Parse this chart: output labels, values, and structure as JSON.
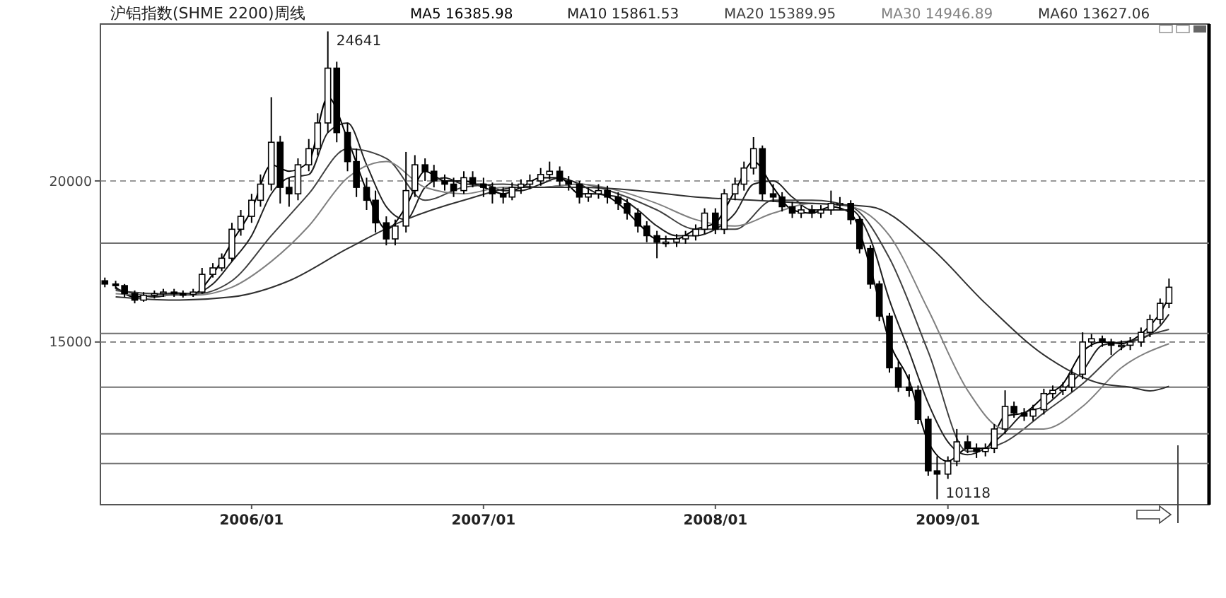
{
  "chart_data": {
    "type": "candlestick",
    "title": "沪铝指数(SHME 2200)周线",
    "x": [
      "2005-05-15",
      "2005-06-01",
      "2005-06-15",
      "2005-07-01",
      "2005-07-15",
      "2005-08-01",
      "2005-08-15",
      "2005-09-01",
      "2005-09-15",
      "2005-10-01",
      "2005-10-15",
      "2005-11-01",
      "2005-11-15",
      "2005-12-01",
      "2005-12-15",
      "2006-01-01",
      "2006-01-15",
      "2006-02-01",
      "2006-02-15",
      "2006-03-01",
      "2006-03-15",
      "2006-04-01",
      "2006-04-15",
      "2006-05-01",
      "2006-05-15",
      "2006-06-01",
      "2006-06-15",
      "2006-07-01",
      "2006-07-15",
      "2006-08-01",
      "2006-08-15",
      "2006-09-01",
      "2006-09-15",
      "2006-10-01",
      "2006-10-15",
      "2006-11-01",
      "2006-11-15",
      "2006-12-01",
      "2006-12-15",
      "2007-01-01",
      "2007-01-15",
      "2007-02-01",
      "2007-02-15",
      "2007-03-01",
      "2007-03-15",
      "2007-04-01",
      "2007-04-15",
      "2007-05-01",
      "2007-05-15",
      "2007-06-01",
      "2007-06-15",
      "2007-07-01",
      "2007-07-15",
      "2007-08-01",
      "2007-08-15",
      "2007-09-01",
      "2007-09-15",
      "2007-10-01",
      "2007-10-15",
      "2007-11-01",
      "2007-11-15",
      "2007-12-01",
      "2007-12-15",
      "2008-01-01",
      "2008-01-15",
      "2008-02-01",
      "2008-02-15",
      "2008-03-01",
      "2008-03-15",
      "2008-04-01",
      "2008-04-15",
      "2008-05-01",
      "2008-05-15",
      "2008-06-01",
      "2008-06-15",
      "2008-07-01",
      "2008-07-15",
      "2008-08-01",
      "2008-08-15",
      "2008-09-01",
      "2008-09-15",
      "2008-10-01",
      "2008-10-15",
      "2008-11-01",
      "2008-11-15",
      "2008-12-01",
      "2008-12-15",
      "2009-01-01",
      "2009-01-15",
      "2009-02-01",
      "2009-02-15",
      "2009-03-01",
      "2009-03-15",
      "2009-04-01",
      "2009-04-15",
      "2009-05-01",
      "2009-05-15",
      "2009-06-01",
      "2009-06-15",
      "2009-07-01",
      "2009-07-15",
      "2009-08-01",
      "2009-08-15",
      "2009-09-01",
      "2009-09-15",
      "2009-10-01",
      "2009-10-15",
      "2009-11-01",
      "2009-11-15",
      "2009-12-01",
      "2009-12-15"
    ],
    "ohlc": [
      [
        16900,
        17000,
        16700,
        16800
      ],
      [
        16800,
        16900,
        16650,
        16750
      ],
      [
        16750,
        16800,
        16400,
        16500
      ],
      [
        16500,
        16600,
        16200,
        16300
      ],
      [
        16300,
        16550,
        16250,
        16450
      ],
      [
        16450,
        16600,
        16350,
        16500
      ],
      [
        16500,
        16650,
        16400,
        16550
      ],
      [
        16550,
        16650,
        16400,
        16500
      ],
      [
        16500,
        16600,
        16380,
        16480
      ],
      [
        16480,
        16650,
        16400,
        16550
      ],
      [
        16550,
        17300,
        16500,
        17100
      ],
      [
        17100,
        17450,
        17000,
        17300
      ],
      [
        17300,
        17750,
        17200,
        17600
      ],
      [
        17600,
        18700,
        17500,
        18500
      ],
      [
        18500,
        19100,
        18300,
        18900
      ],
      [
        18900,
        19600,
        18700,
        19400
      ],
      [
        19400,
        20200,
        19200,
        19900
      ],
      [
        19900,
        22600,
        19700,
        21200
      ],
      [
        21200,
        21400,
        19300,
        19800
      ],
      [
        19800,
        20100,
        19200,
        19600
      ],
      [
        19600,
        20700,
        19400,
        20500
      ],
      [
        20500,
        21300,
        20300,
        21000
      ],
      [
        21000,
        22100,
        20800,
        21800
      ],
      [
        21800,
        24641,
        21500,
        23500
      ],
      [
        23500,
        23700,
        21200,
        21500
      ],
      [
        21500,
        21800,
        20300,
        20600
      ],
      [
        20600,
        21000,
        19500,
        19800
      ],
      [
        19800,
        20100,
        19100,
        19400
      ],
      [
        19400,
        19700,
        18400,
        18700
      ],
      [
        18700,
        18900,
        18000,
        18200
      ],
      [
        18200,
        18800,
        18000,
        18600
      ],
      [
        18600,
        20900,
        18400,
        19700
      ],
      [
        19700,
        20800,
        19500,
        20500
      ],
      [
        20500,
        20700,
        20000,
        20300
      ],
      [
        20300,
        20500,
        19800,
        20000
      ],
      [
        20000,
        20200,
        19700,
        19900
      ],
      [
        19900,
        20100,
        19500,
        19700
      ],
      [
        19700,
        20300,
        19600,
        20100
      ],
      [
        20100,
        20300,
        19800,
        19900
      ],
      [
        19900,
        20100,
        19500,
        19800
      ],
      [
        19800,
        19950,
        19300,
        19600
      ],
      [
        19600,
        19800,
        19300,
        19500
      ],
      [
        19500,
        19950,
        19400,
        19800
      ],
      [
        19800,
        20050,
        19600,
        19900
      ],
      [
        19900,
        20200,
        19750,
        20000
      ],
      [
        20000,
        20400,
        19850,
        20200
      ],
      [
        20200,
        20600,
        20050,
        20300
      ],
      [
        20300,
        20450,
        19850,
        20000
      ],
      [
        20000,
        20150,
        19700,
        19900
      ],
      [
        19900,
        20000,
        19300,
        19500
      ],
      [
        19500,
        19800,
        19350,
        19600
      ],
      [
        19600,
        19900,
        19450,
        19700
      ],
      [
        19700,
        19850,
        19300,
        19500
      ],
      [
        19500,
        19650,
        19100,
        19300
      ],
      [
        19300,
        19450,
        18800,
        19000
      ],
      [
        19000,
        19150,
        18400,
        18600
      ],
      [
        18600,
        18750,
        18100,
        18300
      ],
      [
        18300,
        18450,
        17600,
        18100
      ],
      [
        18100,
        18300,
        17950,
        18100
      ],
      [
        18100,
        18350,
        17950,
        18200
      ],
      [
        18200,
        18450,
        18050,
        18300
      ],
      [
        18300,
        18650,
        18150,
        18500
      ],
      [
        18500,
        19150,
        18350,
        19000
      ],
      [
        19000,
        19150,
        18350,
        18500
      ],
      [
        18500,
        19750,
        18350,
        19600
      ],
      [
        19600,
        20100,
        19400,
        19900
      ],
      [
        19900,
        20600,
        19700,
        20400
      ],
      [
        20400,
        21360,
        20200,
        21000
      ],
      [
        21000,
        21100,
        19400,
        19600
      ],
      [
        19600,
        19900,
        19350,
        19500
      ],
      [
        19500,
        19650,
        19050,
        19200
      ],
      [
        19200,
        19350,
        18850,
        19000
      ],
      [
        19000,
        19250,
        18850,
        19100
      ],
      [
        19100,
        19250,
        18850,
        19000
      ],
      [
        19000,
        19250,
        18850,
        19100
      ],
      [
        19100,
        19700,
        18950,
        19300
      ],
      [
        19300,
        19500,
        19100,
        19300
      ],
      [
        19300,
        19400,
        18650,
        18800
      ],
      [
        18800,
        18900,
        17750,
        17900
      ],
      [
        17900,
        18000,
        16650,
        16800
      ],
      [
        16800,
        16900,
        15650,
        15800
      ],
      [
        15800,
        15900,
        14050,
        14200
      ],
      [
        14200,
        14400,
        13450,
        13600
      ],
      [
        13600,
        14000,
        13300,
        13500
      ],
      [
        13500,
        13650,
        12450,
        12600
      ],
      [
        12600,
        12700,
        10850,
        11000
      ],
      [
        11000,
        11450,
        10118,
        10900
      ],
      [
        10900,
        11450,
        10750,
        11300
      ],
      [
        11300,
        12300,
        11150,
        11900
      ],
      [
        11900,
        12100,
        11550,
        11700
      ],
      [
        11700,
        11850,
        11400,
        11600
      ],
      [
        11600,
        11850,
        11450,
        11700
      ],
      [
        11700,
        12450,
        11550,
        12300
      ],
      [
        12300,
        13500,
        12150,
        13000
      ],
      [
        13000,
        13150,
        12650,
        12800
      ],
      [
        12800,
        12950,
        12550,
        12700
      ],
      [
        12700,
        13050,
        12550,
        12900
      ],
      [
        12900,
        13550,
        12750,
        13400
      ],
      [
        13400,
        13650,
        13250,
        13500
      ],
      [
        13500,
        13750,
        13350,
        13600
      ],
      [
        13600,
        14150,
        13450,
        14000
      ],
      [
        14000,
        15300,
        13850,
        15000
      ],
      [
        15000,
        15250,
        14850,
        15100
      ],
      [
        15100,
        15200,
        14850,
        15000
      ],
      [
        15000,
        15100,
        14600,
        14900
      ],
      [
        14900,
        15050,
        14750,
        14900
      ],
      [
        14900,
        15150,
        14750,
        15000
      ],
      [
        15000,
        15450,
        14850,
        15300
      ],
      [
        15300,
        15850,
        15150,
        15700
      ],
      [
        15700,
        16350,
        15550,
        16200
      ],
      [
        16200,
        16970,
        16050,
        16700
      ]
    ],
    "series": [
      {
        "type": "line",
        "name": "MA5 16385.98",
        "color": "#000000",
        "x": [
          "2005-06-01",
          "2005-07-01",
          "2005-08-01",
          "2005-09-01",
          "2005-10-01",
          "2005-11-01",
          "2005-12-01",
          "2006-01-01",
          "2006-02-01",
          "2006-03-01",
          "2006-04-01",
          "2006-05-01",
          "2006-06-01",
          "2006-07-01",
          "2006-08-01",
          "2006-09-01",
          "2006-10-01",
          "2006-11-01",
          "2006-12-01",
          "2007-01-01",
          "2007-02-01",
          "2007-03-01",
          "2007-04-01",
          "2007-05-01",
          "2007-06-01",
          "2007-07-01",
          "2007-08-01",
          "2007-09-01",
          "2007-10-01",
          "2007-11-01",
          "2007-12-01",
          "2008-01-01",
          "2008-02-01",
          "2008-03-01",
          "2008-04-01",
          "2008-05-01",
          "2008-06-01",
          "2008-07-01",
          "2008-08-01",
          "2008-09-01",
          "2008-10-01",
          "2008-11-01",
          "2008-12-01",
          "2009-01-01",
          "2009-02-01",
          "2009-03-01",
          "2009-04-01",
          "2009-05-01",
          "2009-06-01",
          "2009-07-01",
          "2009-08-01",
          "2009-09-01",
          "2009-10-01",
          "2009-11-01",
          "2009-12-01",
          "2009-12-15"
        ],
        "values": [
          16700,
          16400,
          16450,
          16520,
          16500,
          17100,
          18100,
          19100,
          20500,
          20300,
          20600,
          22600,
          21300,
          19700,
          18500,
          19200,
          20300,
          20000,
          20000,
          19800,
          19600,
          19800,
          20100,
          20100,
          19600,
          19600,
          19300,
          18700,
          18200,
          18200,
          18500,
          18700,
          19700,
          20600,
          19800,
          19100,
          19000,
          19200,
          19000,
          17300,
          15000,
          13800,
          11900,
          11300,
          11700,
          11700,
          12700,
          12800,
          13300,
          13700,
          14700,
          15000,
          14950,
          15250,
          15900,
          16385.98
        ]
      },
      {
        "type": "line",
        "name": "MA10 15861.53",
        "color": "#202020",
        "x": [
          "2005-06-01",
          "2005-07-01",
          "2005-08-01",
          "2005-09-01",
          "2005-10-01",
          "2005-11-01",
          "2005-12-01",
          "2006-01-01",
          "2006-02-01",
          "2006-03-01",
          "2006-04-01",
          "2006-05-01",
          "2006-06-01",
          "2006-07-01",
          "2006-08-01",
          "2006-09-01",
          "2006-10-01",
          "2006-11-01",
          "2006-12-01",
          "2007-01-01",
          "2007-02-01",
          "2007-03-01",
          "2007-04-01",
          "2007-05-01",
          "2007-06-01",
          "2007-07-01",
          "2007-08-01",
          "2007-09-01",
          "2007-10-01",
          "2007-11-01",
          "2007-12-01",
          "2008-01-01",
          "2008-02-01",
          "2008-03-01",
          "2008-04-01",
          "2008-05-01",
          "2008-06-01",
          "2008-07-01",
          "2008-08-01",
          "2008-09-01",
          "2008-10-01",
          "2008-11-01",
          "2008-12-01",
          "2009-01-01",
          "2009-02-01",
          "2009-03-01",
          "2009-04-01",
          "2009-05-01",
          "2009-06-01",
          "2009-07-01",
          "2009-08-01",
          "2009-09-01",
          "2009-10-01",
          "2009-11-01",
          "2009-12-01",
          "2009-12-15"
        ],
        "values": [
          16650,
          16500,
          16400,
          16480,
          16500,
          16800,
          17500,
          18300,
          19600,
          20100,
          20200,
          21500,
          21800,
          20500,
          19200,
          18800,
          19800,
          20100,
          19900,
          19900,
          19700,
          19700,
          19900,
          20100,
          19900,
          19600,
          19500,
          19100,
          18600,
          18300,
          18300,
          18500,
          19000,
          19900,
          20000,
          19500,
          19100,
          19100,
          19100,
          18200,
          16300,
          14700,
          13100,
          11900,
          11500,
          11700,
          12200,
          12800,
          13000,
          13500,
          14100,
          14900,
          15000,
          15100,
          15500,
          15861.53
        ]
      },
      {
        "type": "line",
        "name": "MA20 15389.95",
        "color": "#404040",
        "x": [
          "2005-06-01",
          "2005-08-01",
          "2005-10-01",
          "2005-12-01",
          "2006-02-01",
          "2006-04-01",
          "2006-06-01",
          "2006-08-01",
          "2006-10-01",
          "2006-12-01",
          "2007-02-01",
          "2007-04-01",
          "2007-06-01",
          "2007-08-01",
          "2007-10-01",
          "2007-12-01",
          "2008-02-01",
          "2008-04-01",
          "2008-06-01",
          "2008-08-01",
          "2008-10-01",
          "2008-12-01",
          "2009-02-01",
          "2009-04-01",
          "2009-06-01",
          "2009-08-01",
          "2009-10-01",
          "2009-12-15"
        ],
        "values": [
          16600,
          16500,
          16480,
          16900,
          18300,
          19600,
          21000,
          20700,
          19400,
          19800,
          19900,
          19800,
          19900,
          19600,
          19100,
          18500,
          18500,
          19400,
          19400,
          19200,
          17600,
          14700,
          11600,
          11900,
          12800,
          13700,
          14800,
          15389.95
        ]
      },
      {
        "type": "line",
        "name": "MA30 14946.89",
        "color": "#808080",
        "x": [
          "2005-06-01",
          "2005-08-01",
          "2005-10-01",
          "2005-12-01",
          "2006-02-01",
          "2006-04-01",
          "2006-06-01",
          "2006-08-01",
          "2006-10-01",
          "2006-12-01",
          "2007-02-01",
          "2007-04-01",
          "2007-06-01",
          "2007-08-01",
          "2007-10-01",
          "2007-12-01",
          "2008-02-01",
          "2008-04-01",
          "2008-06-01",
          "2008-08-01",
          "2008-10-01",
          "2008-12-01",
          "2009-02-01",
          "2009-04-01",
          "2009-06-01",
          "2009-08-01",
          "2009-10-01",
          "2009-12-15"
        ],
        "values": [
          16500,
          16450,
          16450,
          16700,
          17500,
          18600,
          20100,
          20600,
          19800,
          19600,
          19800,
          19800,
          19900,
          19700,
          19300,
          18800,
          18600,
          19000,
          19300,
          19200,
          18300,
          16000,
          13500,
          12300,
          12300,
          13000,
          14200,
          14946.89
        ]
      },
      {
        "type": "line",
        "name": "MA60 13627.06",
        "color": "#303030",
        "x": [
          "2005-06-01",
          "2005-09-01",
          "2005-12-01",
          "2006-03-01",
          "2006-06-01",
          "2006-09-01",
          "2006-12-01",
          "2007-03-01",
          "2007-06-01",
          "2007-09-01",
          "2007-12-01",
          "2008-03-01",
          "2008-06-01",
          "2008-09-01",
          "2008-12-01",
          "2009-03-01",
          "2009-06-01",
          "2009-09-01",
          "2009-10-15",
          "2009-11-15",
          "2009-12-15"
        ],
        "values": [
          16400,
          16300,
          16400,
          16900,
          17900,
          18800,
          19400,
          19800,
          19800,
          19700,
          19500,
          19400,
          19300,
          19200,
          18000,
          16200,
          14600,
          13700,
          13600,
          13480,
          13627.06
        ]
      }
    ],
    "xlim": [
      "2005-05-08",
      "2010-02-16"
    ],
    "xticks": [
      {
        "value": "2006-01-01",
        "label": "2006/01"
      },
      {
        "value": "2007-01-01",
        "label": "2007/01"
      },
      {
        "value": "2008-01-01",
        "label": "2008/01"
      },
      {
        "value": "2009-01-01",
        "label": "2009/01"
      }
    ],
    "ylim": [
      9950,
      24870
    ],
    "yticks": [
      15000,
      20000
    ],
    "grid": "y",
    "legend": "top",
    "ref_lines": [
      {
        "axis": "y",
        "value": 18070,
        "color": "#707070"
      },
      {
        "axis": "y",
        "value": 15263,
        "color": "#707070"
      },
      {
        "axis": "y",
        "value": 13596,
        "color": "#707070"
      },
      {
        "axis": "y",
        "value": 12149,
        "color": "#707070"
      },
      {
        "axis": "y",
        "value": 11228,
        "color": "#707070"
      }
    ],
    "annotations": [
      {
        "text": "24641",
        "x": "2006-05-01",
        "y": 24641
      },
      {
        "text": "10118",
        "x": "2008-12-15",
        "y": 10118
      }
    ]
  }
}
